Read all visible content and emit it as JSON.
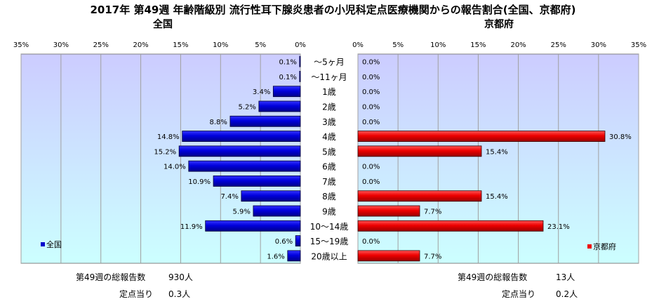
{
  "title": "2017年 第49週 年齢階級別 流行性耳下腺炎患者の小児科定点医療機関からの報告割合(全国、京都府)",
  "panels": {
    "left": {
      "title": "全国",
      "legend": "全国",
      "color": "#0000cc"
    },
    "right": {
      "title": "京都府",
      "legend": "京都府",
      "color": "#ee0000"
    }
  },
  "chart_data": {
    "type": "bar",
    "orientation": "horizontal",
    "categories": [
      "～5ヶ月",
      "～11ヶ月",
      "1歳",
      "2歳",
      "3歳",
      "4歳",
      "5歳",
      "6歳",
      "7歳",
      "8歳",
      "9歳",
      "10～14歳",
      "15～19歳",
      "20歳以上"
    ],
    "series": [
      {
        "name": "全国",
        "values": [
          0.1,
          0.1,
          3.4,
          5.2,
          8.8,
          14.8,
          15.2,
          14.0,
          10.9,
          7.4,
          5.9,
          11.9,
          0.6,
          1.6
        ],
        "labels": [
          "0.1%",
          "0.1%",
          "3.4%",
          "5.2%",
          "8.8%",
          "14.8%",
          "15.2%",
          "14.0%",
          "10.9%",
          "7.4%",
          "5.9%",
          "11.9%",
          "0.6%",
          "1.6%"
        ]
      },
      {
        "name": "京都府",
        "values": [
          0.0,
          0.0,
          0.0,
          0.0,
          0.0,
          30.8,
          15.4,
          0.0,
          0.0,
          15.4,
          7.7,
          23.1,
          0.0,
          7.7
        ],
        "labels": [
          "0.0%",
          "0.0%",
          "0.0%",
          "0.0%",
          "0.0%",
          "30.8%",
          "15.4%",
          "0.0%",
          "0.0%",
          "15.4%",
          "7.7%",
          "23.1%",
          "0.0%",
          "7.7%"
        ]
      }
    ],
    "xlim": [
      0,
      35
    ],
    "xticks": [
      "0%",
      "5%",
      "10%",
      "15%",
      "20%",
      "25%",
      "30%",
      "35%"
    ],
    "grid": true
  },
  "footer": {
    "left": {
      "total_label": "第49週の総報告数",
      "total_value": "930人",
      "per_site_label": "定点当り",
      "per_site_value": "0.3人"
    },
    "right": {
      "total_label": "第49週の総報告数",
      "total_value": "13人",
      "per_site_label": "定点当り",
      "per_site_value": "0.2人"
    }
  }
}
